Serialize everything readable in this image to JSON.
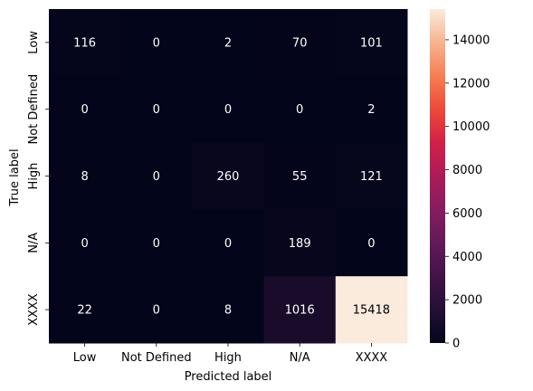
{
  "chart_data": {
    "type": "heatmap",
    "xlabel": "Predicted label",
    "ylabel": "True label",
    "x_categories": [
      "Low",
      "Not Defined",
      "High",
      "N/A",
      "XXXX"
    ],
    "y_categories": [
      "Low",
      "Not Defined",
      "High",
      "N/A",
      "XXXX"
    ],
    "values": [
      [
        116,
        0,
        2,
        70,
        101
      ],
      [
        0,
        0,
        0,
        0,
        2
      ],
      [
        8,
        0,
        260,
        55,
        121
      ],
      [
        0,
        0,
        0,
        189,
        0
      ],
      [
        22,
        0,
        8,
        1016,
        15418
      ]
    ],
    "colorbar": {
      "min": 0,
      "max": 15418,
      "ticks": [
        0,
        2000,
        4000,
        6000,
        8000,
        10000,
        12000,
        14000
      ],
      "colormap": "rocket"
    },
    "annotation_color_dark_cells": "#ffffff",
    "annotation_color_light_cells": "#000000"
  }
}
